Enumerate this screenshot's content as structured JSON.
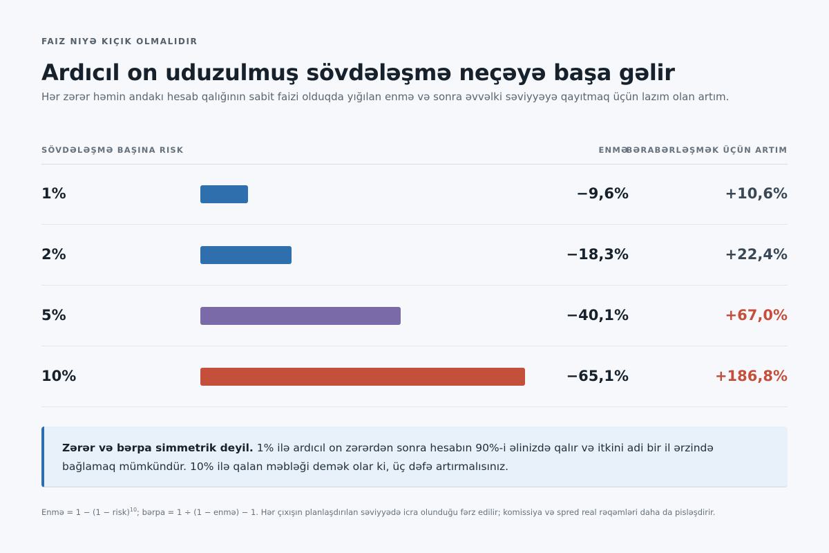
{
  "header": {
    "eyebrow": "FAIZ NIYƏ KIÇIK OLMALIDIR",
    "title": "Ardıcıl on uduzulmuş sövdələşmə neçəyə başa gəlir",
    "subtitle": "Hər zərər həmin andakı hesab qalığının sabit faizi olduqda yığılan enmə və sonra əvvəlki səviyyəyə qayıtmaq üçün lazım olan artım."
  },
  "columns": {
    "risk": "SÖVDƏLƏŞMƏ BAŞINA RISK",
    "drawdown": "ENMƏ",
    "recovery": "BƏRABƏRLƏŞMƏK ÜÇÜN ARTIM"
  },
  "chart_data": {
    "type": "bar",
    "categories": [
      "1%",
      "2%",
      "5%",
      "10%"
    ],
    "drawdown_values": [
      9.6,
      18.3,
      40.1,
      65.1
    ],
    "drawdown_labels": [
      "−9,6%",
      "−18,3%",
      "−40,1%",
      "−65,1%"
    ],
    "recovery_values": [
      10.6,
      22.4,
      67.0,
      186.8
    ],
    "recovery_labels": [
      "+10,6%",
      "+22,4%",
      "+67,0%",
      "+186,8%"
    ],
    "bar_colors": [
      "#2f6fae",
      "#2f6fae",
      "#7b6aa8",
      "#c4503b"
    ],
    "recovery_colors": [
      "#3a4856",
      "#3a4856",
      "#c4503b",
      "#c4503b"
    ],
    "xlim": [
      0,
      100
    ]
  },
  "callout": {
    "lead": "Zərər və bərpa simmetrik deyil.",
    "text": " 1% ilə ardıcıl on zərərdən sonra hesabın 90%-i əlinizdə qalır və itkini adi bir il ərzində bağlamaq mümkündür. 10% ilə qalan məbləği demək olar ki, üç dəfə artırmalısınız."
  },
  "footnote": {
    "part1": "Enmə = 1 − (1 − risk)",
    "sup": "10",
    "part2": "; bərpa = 1 ÷ (1 − enmə) − 1. Hər çıxışın planlaşdırılan səviyyədə icra olunduğu fərz edilir; komissiya və spred real rəqəmləri daha da pisləşdirir."
  }
}
